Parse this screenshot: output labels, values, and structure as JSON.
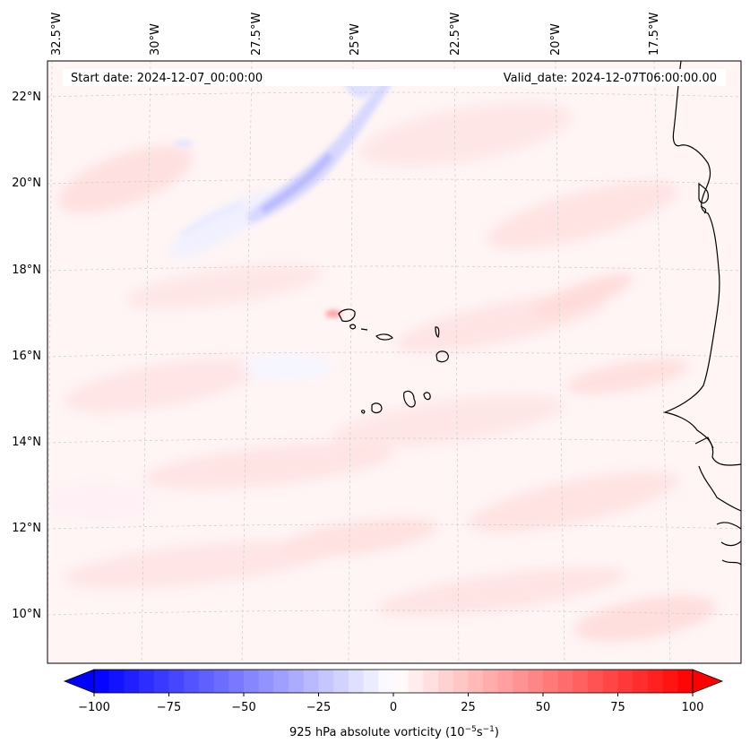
{
  "map": {
    "start_date": "Start date: 2024-12-07_00:00:00",
    "valid_date": "Valid_date: 2024-12-07T06:00:00.00",
    "lon_labels": [
      "32.5°W",
      "30°W",
      "27.5°W",
      "25°W",
      "22.5°W",
      "20°W",
      "17.5°W"
    ],
    "lat_labels": [
      "22°N",
      "20°N",
      "18°N",
      "16°N",
      "14°N",
      "12°N",
      "10°N"
    ]
  },
  "colorbar": {
    "ticks": [
      "−100",
      "−75",
      "−50",
      "−25",
      "0",
      "25",
      "50",
      "75",
      "100"
    ],
    "min": -100,
    "max": 100,
    "label": "925 hPa absolute vorticity (10",
    "label_exp1": "−5",
    "label_mid": "s",
    "label_exp2": "−1",
    "label_end": ")"
  },
  "colors": {
    "neg": "#0000ff",
    "pos": "#ff0000",
    "coast": "#000000",
    "grid": "#c8c8c8"
  }
}
